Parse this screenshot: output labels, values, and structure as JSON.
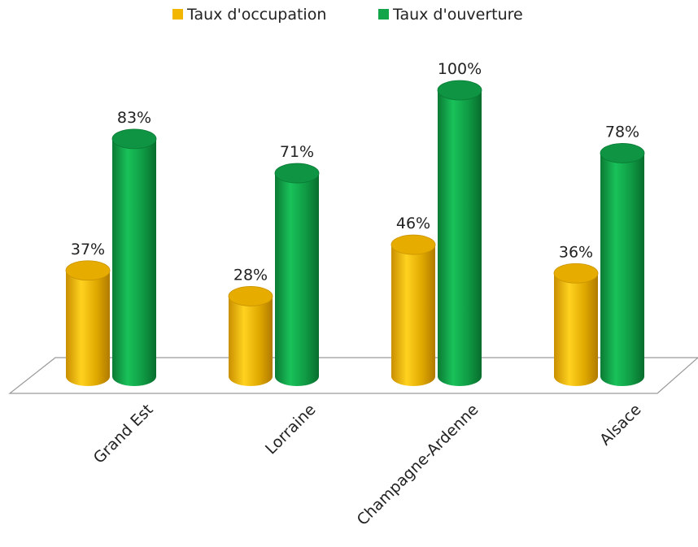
{
  "chart_data": {
    "type": "bar",
    "categories": [
      "Grand Est",
      "Lorraine",
      "Champagne-Ardenne",
      "Alsace"
    ],
    "series": [
      {
        "name": "Taux d'occupation",
        "values": [
          37,
          28,
          46,
          36
        ],
        "labels": [
          "37%",
          "28%",
          "46%",
          "36%"
        ],
        "color": "#f2b600"
      },
      {
        "name": "Taux d'ouverture",
        "values": [
          83,
          71,
          100,
          78
        ],
        "labels": [
          "83%",
          "71%",
          "100%",
          "78%"
        ],
        "color": "#12a54a"
      }
    ],
    "ylim": [
      0,
      100
    ],
    "grid": false,
    "legend": "top",
    "style": "3d-cylinder"
  }
}
